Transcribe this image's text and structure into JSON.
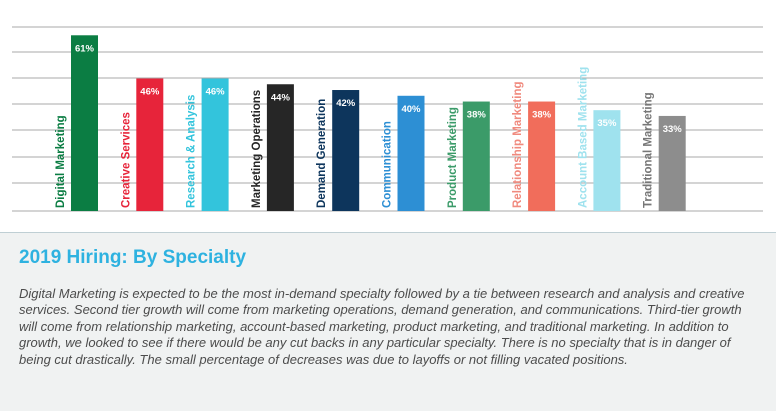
{
  "chart_data": {
    "type": "bar",
    "categories": [
      "Digital Marketing",
      "Creative Services",
      "Research & Analysis",
      "Marketing Operations",
      "Demand Generation",
      "Communication",
      "Product Marketing",
      "Relationship Marketing",
      "Account Based Marketing",
      "Traditional Marketing"
    ],
    "values": [
      61,
      46,
      46,
      44,
      42,
      40,
      38,
      38,
      35,
      33
    ],
    "value_labels": [
      "61%",
      "46%",
      "46%",
      "44%",
      "42%",
      "40%",
      "38%",
      "38%",
      "35%",
      "33%"
    ],
    "bar_colors": [
      "#0b7d43",
      "#e7243a",
      "#33c4dc",
      "#262626",
      "#0d355c",
      "#2d8fd4",
      "#3b9b69",
      "#f16d5b",
      "#9fe2ee",
      "#8d8d8d"
    ],
    "label_colors": [
      "#0b7d43",
      "#e7243a",
      "#33c4dc",
      "#262626",
      "#0d355c",
      "#2d8fd4",
      "#3b9b69",
      "#f08a7e",
      "#9fe2ee",
      "#777777"
    ],
    "ylim": [
      0,
      67
    ],
    "grid": true,
    "title": "",
    "xlabel": "",
    "ylabel": ""
  },
  "caption": {
    "title": "2019 Hiring: By Specialty",
    "body": "Digital Marketing is expected to be the most in-demand specialty followed by a tie between research and analysis and creative services. Second tier growth will come from marketing operations, demand generation, and communications. Third-tier growth will come from relationship marketing, account-based marketing, product marketing, and traditional marketing. In addition to growth, we looked to see if there would be any cut backs in any particular specialty. There is no specialty that is in danger of being cut drastically. The small percentage of decreases was due to layoffs or not filling vacated positions.",
    "title_color": "#2eb2e0"
  }
}
